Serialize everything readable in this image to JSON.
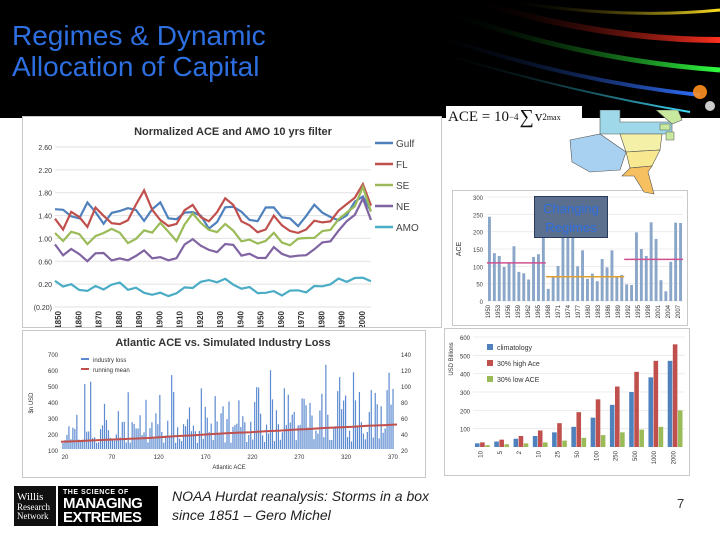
{
  "title": {
    "line1": "Regimes & Dynamic",
    "line2": "Allocation of Capital"
  },
  "equation": {
    "lhs": "ACE = 10",
    "exponent": "−4",
    "sum_symbol": "∑",
    "term": "v",
    "term_sup": "2",
    "term_sub": "max"
  },
  "regime_label": {
    "line1": "Changing",
    "line2": "Regimes"
  },
  "footer": {
    "willis_line1": "Willis",
    "willis_line2": "Research",
    "willis_line3": "Network",
    "extremes_small": "THE SCIENCE OF",
    "extremes_big1": "MANAGING",
    "extremes_big2": "EXTREMES",
    "caption_line1": "NOAA Hurdat reanalysis: Storms in a box",
    "caption_line2": "since 1851 – Gero Michel",
    "page_number": "7"
  },
  "colors": {
    "title_blue": "#2d6fe0",
    "gulf": "#4f81bd",
    "fl": "#c0504d",
    "se": "#9bbb59",
    "ne": "#8064a2",
    "amo": "#4bacc6"
  },
  "chart_data": [
    {
      "type": "line",
      "title": "Normalized ACE and AMO 10 yrs filter",
      "ylim": [
        -0.2,
        2.6
      ],
      "yticks": [
        "2.60",
        "2.20",
        "1.80",
        "1.40",
        "1.00",
        "0.60",
        "0.20",
        "(0.20)"
      ],
      "ytick_values": [
        2.6,
        2.2,
        1.8,
        1.4,
        1.0,
        0.6,
        0.2,
        -0.2
      ],
      "xticks": [
        "1850",
        "1860",
        "1870",
        "1880",
        "1890",
        "1900",
        "1910",
        "1920",
        "1930",
        "1940",
        "1950",
        "1960",
        "1970",
        "1980",
        "1990",
        "2000"
      ],
      "x_start": 1851,
      "x_end": 2009,
      "legend": [
        "Gulf",
        "FL",
        "SE",
        "NE",
        "AMO"
      ],
      "series": [
        {
          "name": "Gulf",
          "values": [
            1.55,
            1.5,
            1.35,
            1.4,
            1.6,
            1.45,
            1.3,
            1.4,
            1.5,
            1.55,
            1.45,
            1.35,
            1.5,
            1.6,
            1.4,
            1.3,
            1.45,
            1.5,
            1.35,
            1.2,
            1.3,
            1.5,
            1.6,
            1.45,
            1.3,
            1.35,
            1.5,
            1.55,
            1.4,
            1.3,
            1.25,
            1.4,
            1.55,
            1.5,
            1.35,
            1.3,
            1.45,
            1.6,
            1.75,
            1.5
          ]
        },
        {
          "name": "FL",
          "values": [
            1.3,
            1.2,
            1.45,
            1.35,
            1.25,
            1.5,
            1.4,
            1.3,
            1.2,
            1.35,
            1.6,
            1.8,
            1.55,
            1.3,
            1.2,
            1.3,
            1.45,
            1.6,
            1.4,
            1.25,
            1.5,
            1.7,
            1.55,
            1.35,
            1.2,
            1.1,
            1.2,
            1.35,
            1.25,
            1.15,
            1.05,
            1.2,
            1.3,
            1.25,
            1.35,
            1.45,
            1.6,
            1.75,
            1.9,
            1.6
          ]
        },
        {
          "name": "SE",
          "values": [
            1.05,
            1.0,
            1.1,
            1.05,
            0.95,
            1.0,
            1.1,
            1.2,
            1.05,
            0.95,
            1.0,
            1.1,
            1.15,
            1.25,
            1.1,
            1.0,
            1.2,
            1.45,
            1.3,
            1.1,
            1.15,
            1.25,
            1.1,
            1.0,
            0.95,
            0.9,
            1.0,
            1.05,
            0.95,
            0.9,
            0.95,
            1.05,
            1.0,
            1.1,
            1.2,
            1.3,
            1.45,
            1.6,
            1.85,
            1.5
          ]
        },
        {
          "name": "NE",
          "values": [
            0.85,
            0.75,
            0.8,
            0.7,
            0.65,
            0.7,
            0.75,
            0.65,
            0.6,
            0.65,
            0.7,
            0.75,
            0.7,
            0.65,
            0.6,
            0.7,
            0.85,
            1.0,
            0.9,
            0.75,
            0.8,
            0.9,
            0.85,
            0.75,
            0.7,
            0.65,
            0.7,
            0.8,
            0.75,
            0.7,
            0.65,
            0.75,
            0.8,
            0.9,
            1.0,
            1.1,
            1.3,
            1.45,
            1.65,
            1.35
          ]
        },
        {
          "name": "AMO",
          "values": [
            0.25,
            0.2,
            0.15,
            0.12,
            0.1,
            0.12,
            0.15,
            0.18,
            0.2,
            0.15,
            0.1,
            0.05,
            0.05,
            0.0,
            0.02,
            0.05,
            0.1,
            0.18,
            0.22,
            0.25,
            0.28,
            0.25,
            0.2,
            0.15,
            0.1,
            0.08,
            0.05,
            0.04,
            0.05,
            0.06,
            0.08,
            0.1,
            0.12,
            0.18,
            0.22,
            0.25,
            0.28,
            0.3,
            0.28,
            0.3
          ]
        }
      ]
    },
    {
      "type": "bar",
      "ylabel": "ACE",
      "ylim": [
        0,
        300
      ],
      "yticks": [
        "300",
        "250",
        "200",
        "150",
        "100",
        "50",
        "0"
      ],
      "xticks": [
        "1950",
        "1953",
        "1956",
        "1959",
        "1962",
        "1965",
        "1968",
        "1971",
        "1974",
        "1977",
        "1980",
        "1983",
        "1986",
        "1989",
        "1992",
        "1995",
        "1998",
        "2001",
        "2004",
        "2007"
      ],
      "regime_levels": [
        {
          "from_index": 0,
          "to_index": 12,
          "value": 110
        },
        {
          "from_index": 12,
          "to_index": 28,
          "value": 70
        },
        {
          "from_index": 28,
          "to_index": 40,
          "value": 120
        }
      ],
      "values": [
        243,
        138,
        130,
        98,
        111,
        158,
        84,
        80,
        62,
        127,
        135,
        187,
        35,
        71,
        101,
        188,
        182,
        192,
        100,
        146,
        64,
        79,
        57,
        121,
        97,
        146,
        71,
        75,
        48,
        46,
        198,
        150,
        130,
        227,
        179,
        60,
        28,
        113,
        226,
        225
      ]
    },
    {
      "type": "bar",
      "title": "Atlantic ACE vs. Simulated Industry Loss",
      "xlabel": "Atlantic ACE",
      "ylabel": "$n USD",
      "yticks_left": [
        "700",
        "600",
        "500",
        "400",
        "300",
        "200",
        "100"
      ],
      "yticks_right": [
        "140",
        "120",
        "100",
        "80",
        "60",
        "40",
        "20"
      ],
      "xticks": [
        "20",
        "70",
        "120",
        "170",
        "220",
        "270",
        "320",
        "370"
      ],
      "legend": [
        "industry loss",
        "running mean"
      ],
      "running_mean": [
        10,
        12,
        14,
        16,
        18,
        20,
        22,
        25,
        28,
        30,
        33,
        36,
        38,
        40,
        43,
        45,
        48,
        50,
        53,
        55,
        57,
        60,
        62,
        64
      ]
    },
    {
      "type": "bar",
      "ylabel": "USD Billions",
      "ylim": [
        0,
        600
      ],
      "yticks": [
        "600",
        "500",
        "400",
        "300",
        "200",
        "100"
      ],
      "categories": [
        "10",
        "5",
        "2",
        "10",
        "25",
        "50",
        "100",
        "250",
        "500",
        "1000",
        "2000"
      ],
      "legend": [
        "climatology",
        "30% high Ace",
        "30% low ACE"
      ],
      "series": [
        {
          "name": "climatology",
          "values": [
            20,
            30,
            45,
            60,
            80,
            110,
            160,
            230,
            300,
            380,
            470
          ]
        },
        {
          "name": "30% high Ace",
          "values": [
            25,
            40,
            60,
            90,
            130,
            190,
            260,
            330,
            410,
            470,
            560
          ]
        },
        {
          "name": "30% low ACE",
          "values": [
            10,
            15,
            20,
            25,
            35,
            50,
            65,
            80,
            95,
            110,
            200
          ]
        }
      ]
    }
  ]
}
